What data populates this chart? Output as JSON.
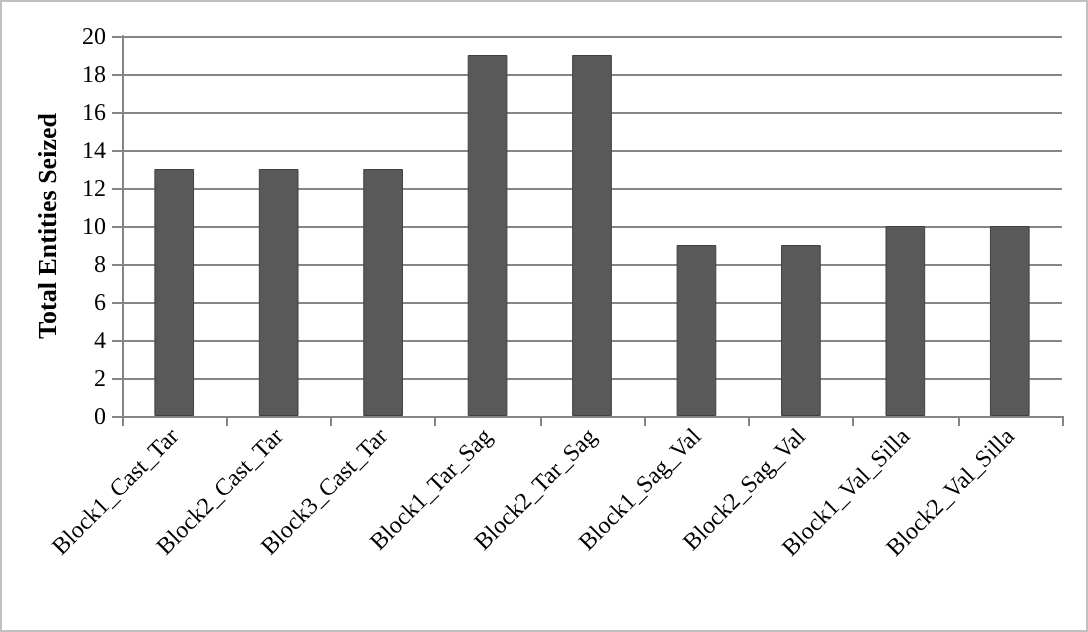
{
  "chart_data": {
    "type": "bar",
    "ylabel": "Total Entities Seized",
    "categories": [
      "Block1_Cast_Tar",
      "Block2_Cast_Tar",
      "Block3_Cast_Tar",
      "Block1_Tar_Sag",
      "Block2_Tar_Sag",
      "Block1_Sag_Val",
      "Block2_Sag_Val",
      "Block1_Val_Silla",
      "Block2_Val_Silla"
    ],
    "values": [
      13,
      13,
      13,
      19,
      19,
      9,
      9,
      10,
      10
    ],
    "color": "#595959",
    "ylim": [
      0,
      20
    ],
    "yticks": [
      0,
      2,
      4,
      6,
      8,
      10,
      12,
      14,
      16,
      18,
      20
    ],
    "grid": "y"
  }
}
